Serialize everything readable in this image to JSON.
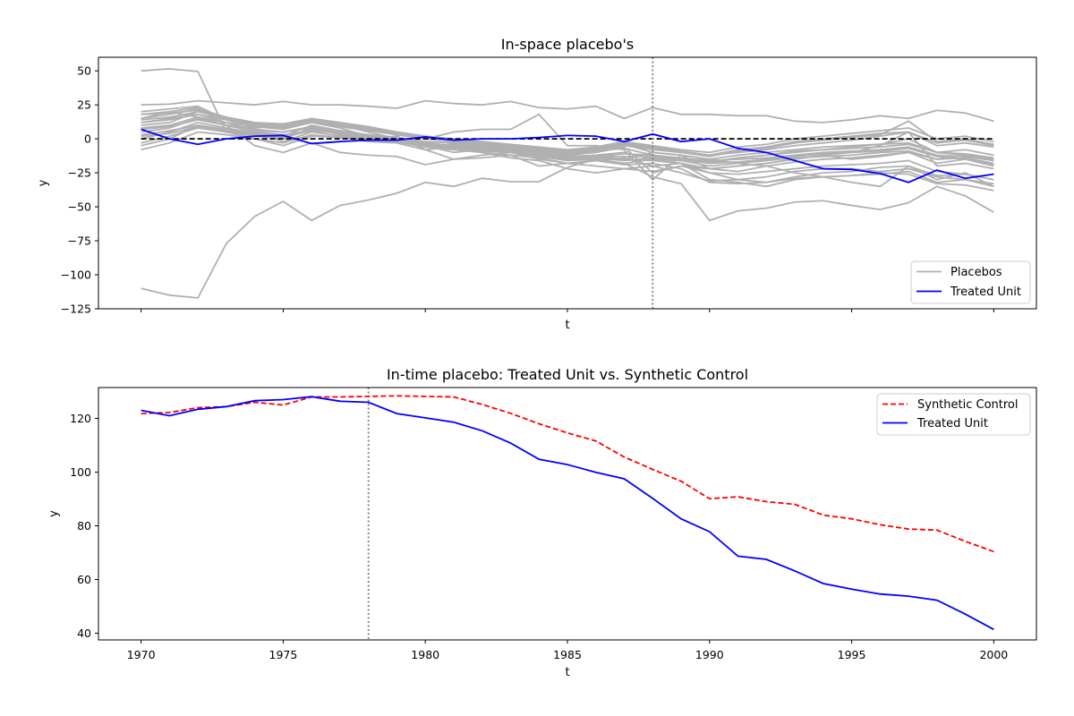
{
  "colors": {
    "placebo": "#b0b0b0",
    "treated": "#0000ff",
    "synthetic": "#ff0000",
    "zero_line": "#000000",
    "treatment_line": "#808080"
  },
  "chart_data": [
    {
      "type": "line",
      "title": "In-space placebo's",
      "xlabel": "t",
      "ylabel": "y",
      "xlim": [
        1968.5,
        2001.5
      ],
      "ylim": [
        -125,
        60
      ],
      "x_ticks_labeled": false,
      "y_ticks": [
        50,
        25,
        0,
        -25,
        -50,
        -75,
        -100,
        -125
      ],
      "y_tick_labels": [
        "50",
        "25",
        "0",
        "−25",
        "−50",
        "−75",
        "−100",
        "−125"
      ],
      "x": [
        1970,
        1971,
        1972,
        1973,
        1974,
        1975,
        1976,
        1977,
        1978,
        1979,
        1980,
        1981,
        1982,
        1983,
        1984,
        1985,
        1986,
        1987,
        1988,
        1989,
        1990,
        1991,
        1992,
        1993,
        1994,
        1995,
        1996,
        1997,
        1998,
        1999,
        2000
      ],
      "treatment_year": 1988,
      "zero_reference": 0,
      "legend_position": "lower-right",
      "legend": [
        {
          "label": "Placebos",
          "style": "solid",
          "color_key": "placebo"
        },
        {
          "label": "Treated Unit",
          "style": "solid",
          "color_key": "treated"
        }
      ],
      "placebos": [
        [
          50,
          51.5,
          49.5,
          5,
          0,
          -5,
          2,
          1,
          -2,
          -3,
          -8,
          -6,
          -10,
          -14,
          -16,
          -22,
          -25,
          -22,
          -20,
          -18,
          -22,
          -20,
          -18,
          -15,
          -12,
          -15,
          -13,
          -10,
          -15,
          -12,
          -14
        ],
        [
          25,
          25.5,
          28,
          26.5,
          25,
          27.5,
          25,
          25,
          24,
          22.5,
          28,
          26,
          25,
          27.5,
          23,
          22,
          24,
          15,
          23,
          18,
          18,
          17,
          17,
          13,
          12,
          14,
          17,
          15,
          21,
          19,
          13
        ],
        [
          -110,
          -115,
          -117,
          -77,
          -57,
          -46,
          -60,
          -49,
          -45,
          -40,
          -32,
          -35,
          -29,
          -31.5,
          -31.5,
          -21,
          -15,
          -18,
          -28,
          -33,
          -60,
          -53,
          -51,
          -46.5,
          -45.5,
          -49,
          -52,
          -47,
          -35,
          -42,
          -54
        ],
        [
          15,
          20,
          23,
          10,
          -5,
          -10,
          -3,
          -10,
          -12,
          -13,
          -19,
          -15,
          -14,
          -12,
          -20,
          -18,
          -16,
          -19,
          -18,
          -22,
          -32,
          -33,
          -32,
          -29,
          -28,
          -27,
          -25,
          -26,
          -33,
          -34,
          -38
        ],
        [
          18,
          20,
          16,
          10,
          8,
          10,
          14,
          12,
          9,
          5,
          0,
          5,
          7,
          7,
          18,
          -5,
          -5,
          -8,
          -30,
          -12,
          -15,
          -18,
          -20,
          -25,
          -28,
          -32,
          -35,
          -20,
          -30,
          -25,
          -35
        ],
        [
          20,
          22,
          24,
          14,
          8,
          10,
          12,
          8,
          2,
          0,
          -3,
          -5,
          -7,
          -10,
          -12,
          -15,
          -12,
          -10,
          -15,
          -18,
          -30,
          -32,
          -35,
          -30,
          -28,
          -27,
          -26,
          -24,
          -32,
          -30,
          -33
        ],
        [
          12,
          15,
          18,
          12,
          6,
          5,
          8,
          3,
          0,
          -2,
          -6,
          -8,
          -10,
          -12,
          -14,
          -18,
          -16,
          -14,
          -20,
          -25,
          -31,
          -30,
          -28,
          -24,
          -22,
          -22,
          -24,
          -22,
          -28,
          -30,
          -35
        ],
        [
          10,
          12,
          20,
          15,
          10,
          8,
          15,
          10,
          5,
          0,
          -5,
          -10,
          -8,
          -6,
          -10,
          -12,
          -10,
          -6,
          -25,
          -20,
          -25,
          -30,
          -32,
          -28,
          -25,
          -24,
          -21,
          -20,
          -27,
          -26,
          -30
        ],
        [
          5,
          8,
          15,
          10,
          5,
          -2,
          5,
          2,
          0,
          2,
          -8,
          -15,
          -12,
          -10,
          -15,
          -18,
          -20,
          -22,
          -24,
          -20,
          -22,
          -24,
          -20,
          -17,
          -15,
          -14,
          -12,
          -10,
          -18,
          -15,
          -20
        ],
        [
          -5,
          0,
          10,
          5,
          2,
          0,
          8,
          5,
          3,
          0,
          -5,
          -4,
          -6,
          -8,
          -10,
          -14,
          -12,
          -15,
          -10,
          -12,
          -15,
          -12,
          -10,
          -8,
          -6,
          -5,
          -4,
          -3,
          -10,
          -12,
          -15
        ],
        [
          -8,
          -3,
          5,
          3,
          0,
          -3,
          3,
          1,
          -1,
          -2,
          -6,
          -8,
          -9,
          -10,
          -13,
          -16,
          -15,
          -18,
          -15,
          -16,
          -20,
          -18,
          -16,
          -14,
          -13,
          -12,
          -10,
          -9,
          -15,
          -14,
          -18
        ],
        [
          0,
          5,
          12,
          8,
          4,
          2,
          10,
          6,
          3,
          1,
          -2,
          -3,
          -5,
          -7,
          -9,
          -11,
          -9,
          -7,
          -12,
          -15,
          -18,
          -14,
          -12,
          -9,
          -8,
          -6,
          -4,
          0,
          -10,
          -8,
          -12
        ],
        [
          8,
          10,
          16,
          12,
          9,
          7,
          12,
          9,
          6,
          3,
          0,
          -2,
          -4,
          -6,
          -8,
          -10,
          -8,
          -5,
          -8,
          -10,
          -12,
          -10,
          -8,
          -5,
          -3,
          -1,
          2,
          5,
          -5,
          -3,
          -6
        ],
        [
          15,
          18,
          22,
          16,
          12,
          11,
          15,
          12,
          8,
          5,
          2,
          0,
          -2,
          -4,
          -6,
          -8,
          -6,
          -2,
          -5,
          -8,
          -10,
          -6,
          -4,
          0,
          2,
          4,
          6,
          8,
          0,
          2,
          -2
        ],
        [
          3,
          6,
          10,
          7,
          5,
          3,
          6,
          4,
          2,
          0,
          -4,
          -6,
          -7,
          -9,
          -11,
          -13,
          -12,
          -13,
          -13,
          -14,
          -16,
          -15,
          -14,
          -12,
          -10,
          -9,
          -8,
          -6,
          -12,
          -13,
          -16
        ],
        [
          12,
          14,
          18,
          14,
          10,
          8,
          12,
          9,
          6,
          4,
          1,
          -1,
          -3,
          -5,
          -7,
          -9,
          -7,
          -3,
          -6,
          -9,
          -12,
          -8,
          -6,
          -2,
          0,
          2,
          4,
          5,
          -3,
          -1,
          -5
        ],
        [
          -3,
          2,
          8,
          5,
          3,
          1,
          6,
          4,
          1,
          -1,
          -5,
          -7,
          -8,
          -10,
          -12,
          -15,
          -14,
          -16,
          -14,
          -15,
          -18,
          -17,
          -15,
          -13,
          -11,
          -10,
          -9,
          -7,
          -13,
          -15,
          -19
        ],
        [
          18,
          19,
          21,
          15,
          11,
          9,
          13,
          10,
          7,
          4,
          1,
          -2,
          -4,
          -6,
          -8,
          -11,
          -9,
          -4,
          -7,
          -10,
          -13,
          -9,
          -7,
          -3,
          -1,
          1,
          3,
          13,
          -2,
          0,
          -4
        ],
        [
          7,
          9,
          14,
          10,
          7,
          5,
          9,
          6,
          3,
          1,
          -3,
          -5,
          -7,
          -9,
          -11,
          -14,
          -12,
          -11,
          -12,
          -14,
          -17,
          -14,
          -12,
          -10,
          -8,
          -7,
          -6,
          -4,
          -10,
          -11,
          -14
        ],
        [
          14,
          16,
          20,
          15,
          11,
          10,
          14,
          11,
          8,
          5,
          2,
          -1,
          -3,
          -5,
          -7,
          -10,
          -8,
          -4,
          -10,
          -12,
          -22,
          -20,
          -18,
          -15,
          -12,
          -10,
          -5,
          5,
          -20,
          -18,
          -22
        ],
        [
          2,
          4,
          9,
          6,
          4,
          2,
          7,
          4,
          2,
          0,
          -4,
          -6,
          -8,
          -10,
          -12,
          -14,
          -13,
          -15,
          -16,
          -18,
          -25,
          -26,
          -24,
          -22,
          -20,
          -19,
          -18,
          -16,
          -24,
          -26,
          -30
        ]
      ],
      "treated_values": [
        7,
        0,
        -4,
        0,
        2,
        2.5,
        -3.5,
        -2,
        -1,
        -1,
        1.5,
        -1,
        0,
        0,
        1,
        2.5,
        2,
        -2,
        3.5,
        -2,
        0,
        -7,
        -10,
        -16,
        -22,
        -22.5,
        -25.5,
        -32,
        -23,
        -29,
        -26
      ]
    },
    {
      "type": "line",
      "title": "In-time placebo: Treated Unit vs. Synthetic Control",
      "xlabel": "t",
      "ylabel": "y",
      "xlim": [
        1968.5,
        2001.5
      ],
      "ylim": [
        37.5,
        131.5
      ],
      "x_ticks": [
        1970,
        1975,
        1980,
        1985,
        1990,
        1995,
        2000
      ],
      "y_ticks": [
        120,
        100,
        80,
        60,
        40
      ],
      "x": [
        1970,
        1971,
        1972,
        1973,
        1974,
        1975,
        1976,
        1977,
        1978,
        1979,
        1980,
        1981,
        1982,
        1983,
        1984,
        1985,
        1986,
        1987,
        1988,
        1989,
        1990,
        1991,
        1992,
        1993,
        1994,
        1995,
        1996,
        1997,
        1998,
        1999,
        2000
      ],
      "treatment_year": 1978,
      "legend_position": "upper-right",
      "series": [
        {
          "name": "Synthetic Control",
          "style": "dashed",
          "color_key": "synthetic",
          "values": [
            121.8,
            122.2,
            124,
            124.4,
            126,
            125,
            128,
            128,
            128.2,
            128.4,
            128.2,
            128,
            125.2,
            121.9,
            118,
            114.6,
            111.6,
            105.6,
            101,
            96.6,
            90.1,
            90.8,
            89,
            88,
            84,
            82.6,
            80.4,
            78.8,
            78.4,
            74.2,
            70.4
          ]
        },
        {
          "name": "Treated Unit",
          "style": "solid",
          "color_key": "treated",
          "values": [
            123,
            121,
            123.4,
            124.4,
            126.6,
            127,
            128.1,
            126.4,
            126,
            121.8,
            120.2,
            118.6,
            115.4,
            110.8,
            104.8,
            102.8,
            99.9,
            97.5,
            90.2,
            82.6,
            77.8,
            68.7,
            67.5,
            63.2,
            58.5,
            56.4,
            54.6,
            53.8,
            52.3,
            47.1,
            41.4
          ]
        }
      ]
    }
  ]
}
